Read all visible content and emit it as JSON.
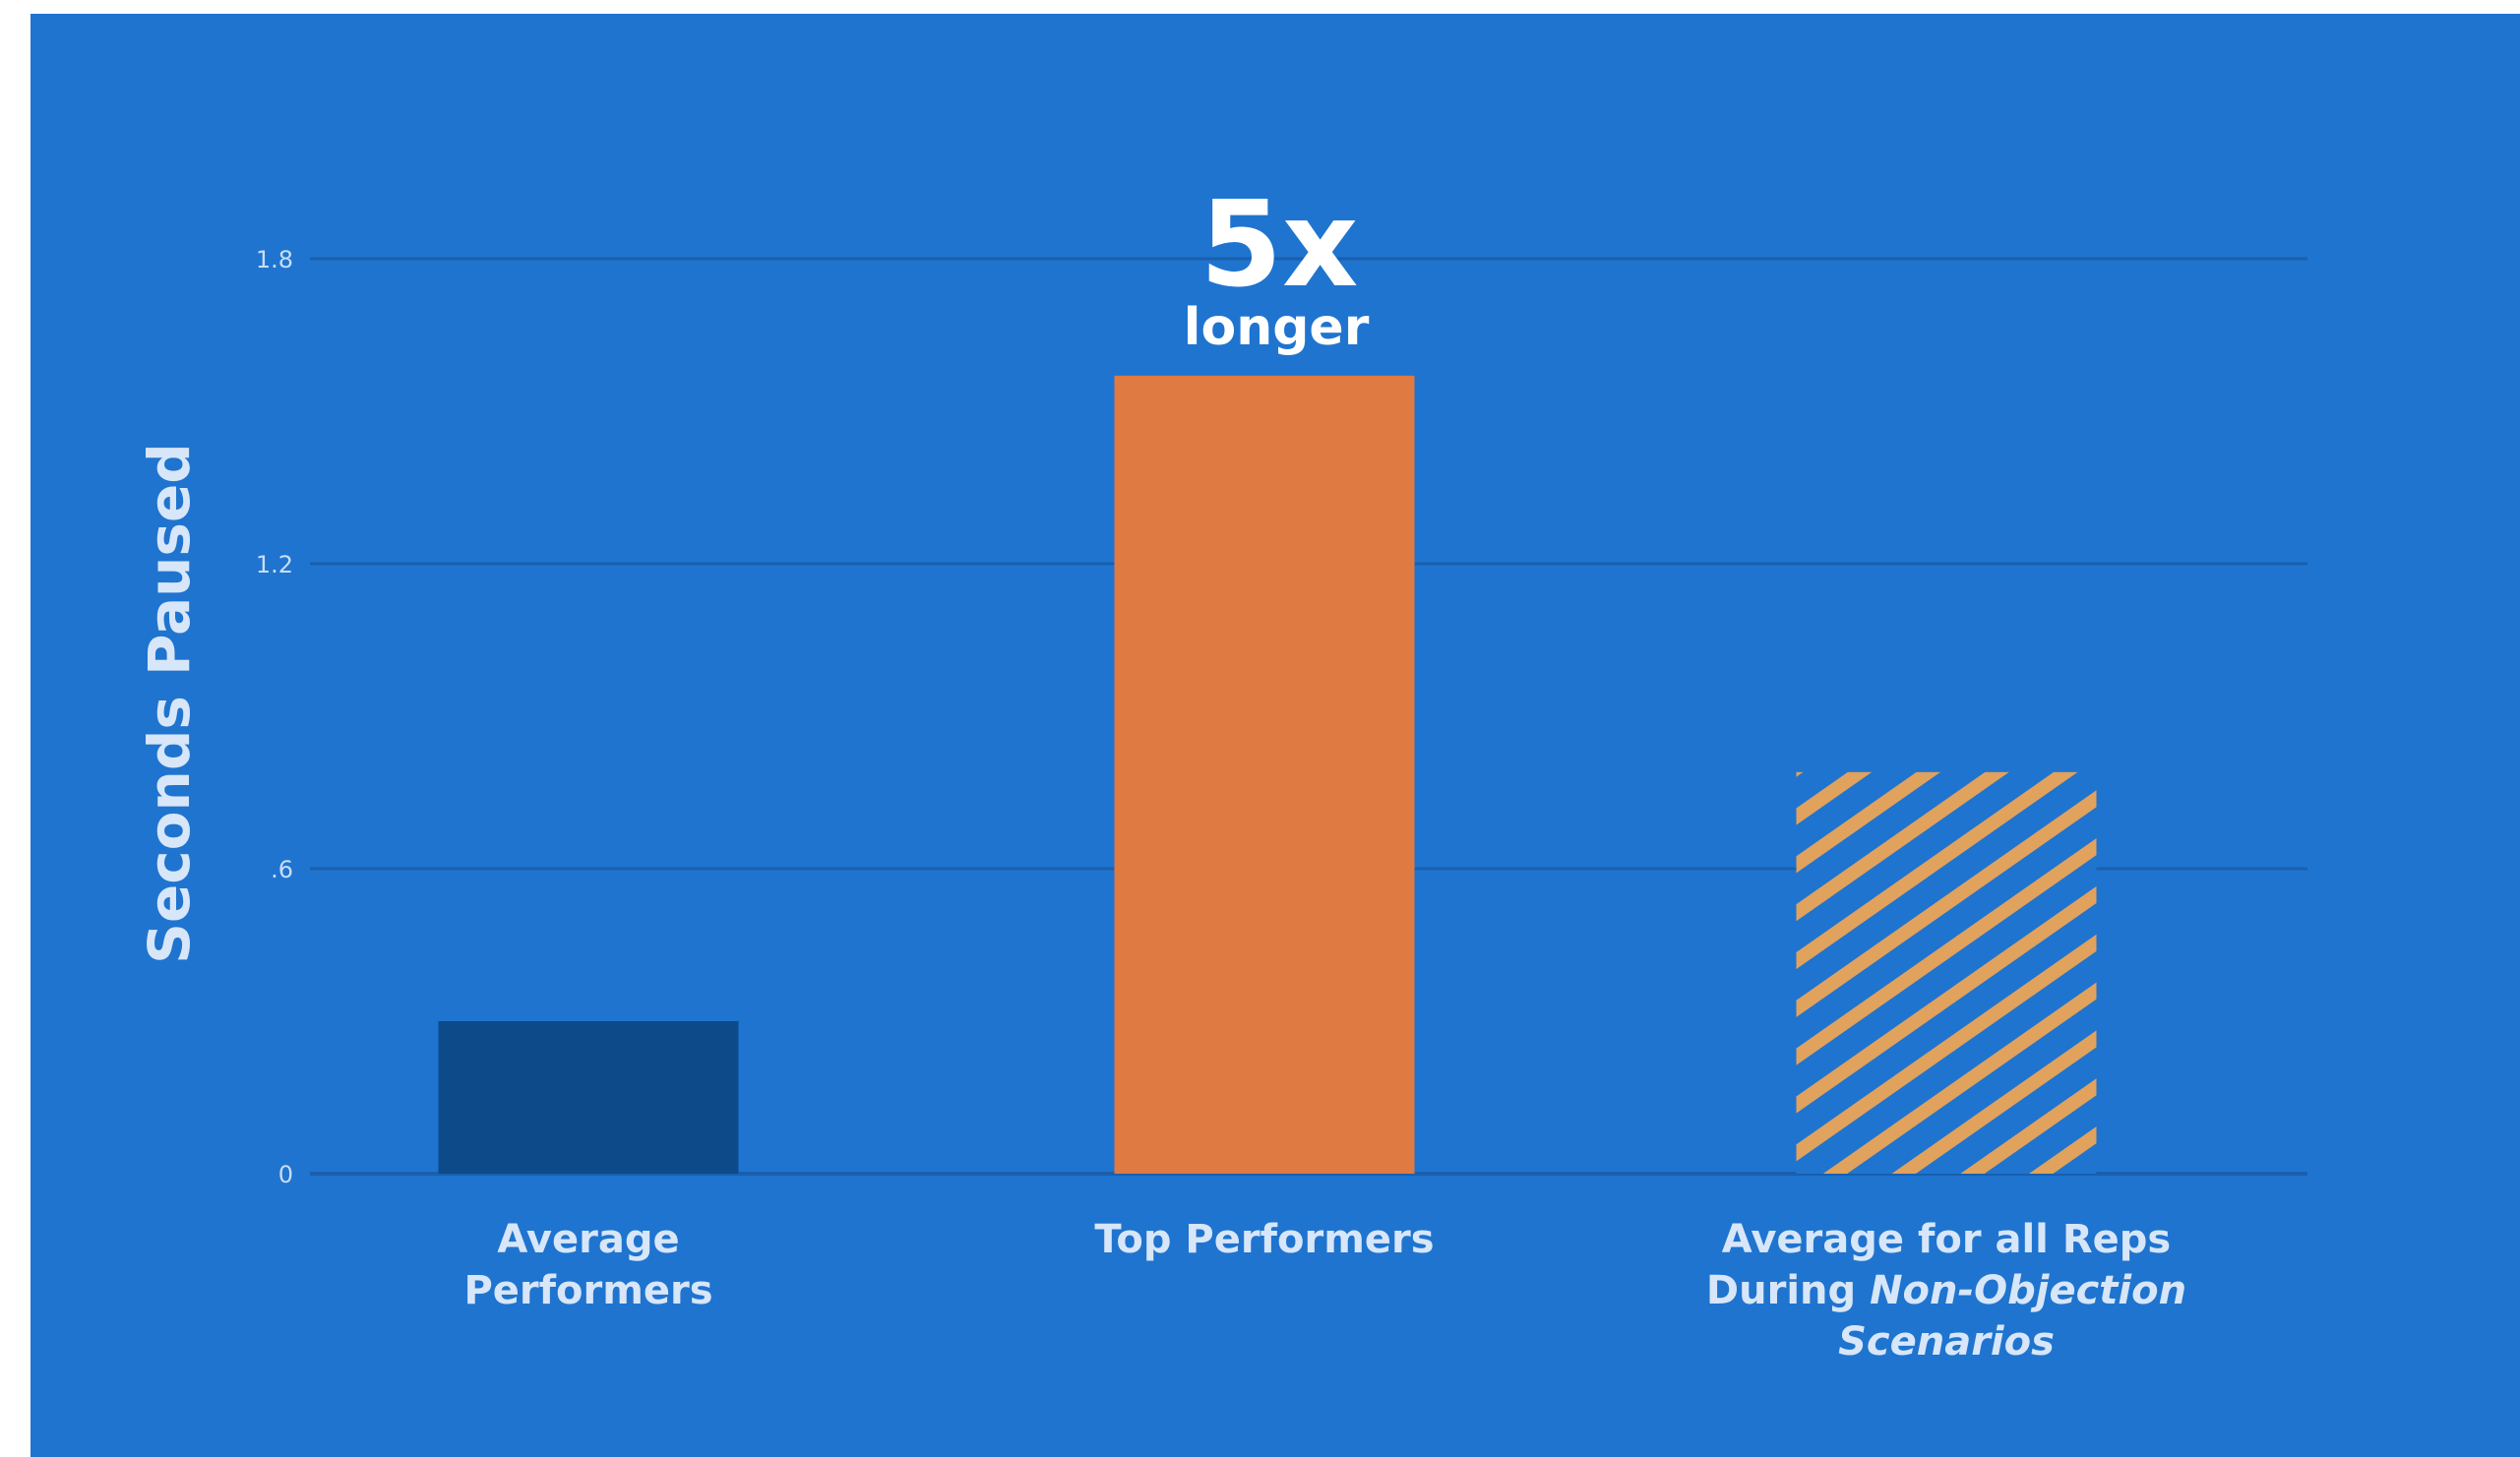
{
  "colors": {
    "background": "#1f74cf",
    "gridline": "#1a5fae",
    "average_performers": "#0d4a8a",
    "top_performers": "#e07a43",
    "hatch_stripe": "#e0a25c"
  },
  "chart_data": {
    "type": "bar",
    "ylabel": "Seconds Paused",
    "ylim": [
      0,
      1.8
    ],
    "yticks": [
      "0",
      ".6",
      "1.2",
      "1.8"
    ],
    "ytick_values": [
      0,
      0.6,
      1.2,
      1.8
    ],
    "grid": true,
    "categories": [
      {
        "label_lines": [
          "Average",
          "Performers"
        ],
        "italic_lines": []
      },
      {
        "label_lines": [
          "Top Performers"
        ],
        "italic_lines": []
      },
      {
        "label_lines": [
          "Average for all Reps",
          "During ",
          "Scenarios"
        ],
        "italic_parts": [
          "Non-Objection"
        ]
      }
    ],
    "values": [
      0.3,
      1.57,
      0.79
    ],
    "fills": [
      "solid",
      "solid",
      "hatched"
    ],
    "annotation": {
      "big": "5x",
      "small": "longer",
      "category_index": 1
    }
  }
}
